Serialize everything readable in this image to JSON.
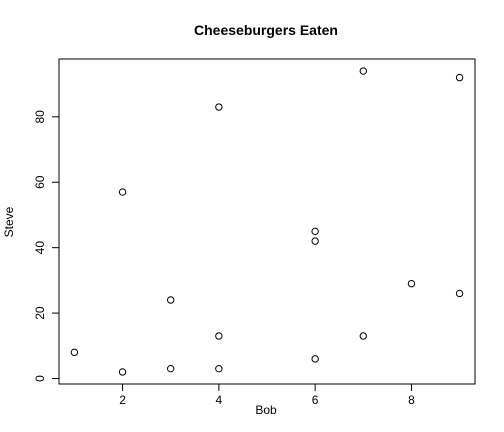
{
  "chart_data": {
    "type": "scatter",
    "title": "Cheeseburgers Eaten",
    "xlabel": "Bob",
    "ylabel": "Steve",
    "xlim": [
      0.68,
      9.32
    ],
    "ylim": [
      -1.68,
      97.68
    ],
    "x_ticks": [
      2,
      4,
      6,
      8
    ],
    "y_ticks": [
      0,
      20,
      40,
      60,
      80
    ],
    "grid": false,
    "points": [
      {
        "x": 1,
        "y": 8
      },
      {
        "x": 2,
        "y": 2
      },
      {
        "x": 2,
        "y": 57
      },
      {
        "x": 3,
        "y": 24
      },
      {
        "x": 3,
        "y": 3
      },
      {
        "x": 4,
        "y": 83
      },
      {
        "x": 4,
        "y": 13
      },
      {
        "x": 4,
        "y": 3
      },
      {
        "x": 6,
        "y": 45
      },
      {
        "x": 6,
        "y": 42
      },
      {
        "x": 6,
        "y": 6
      },
      {
        "x": 7,
        "y": 94
      },
      {
        "x": 7,
        "y": 13
      },
      {
        "x": 8,
        "y": 29
      },
      {
        "x": 9,
        "y": 92
      },
      {
        "x": 9,
        "y": 26
      }
    ]
  }
}
